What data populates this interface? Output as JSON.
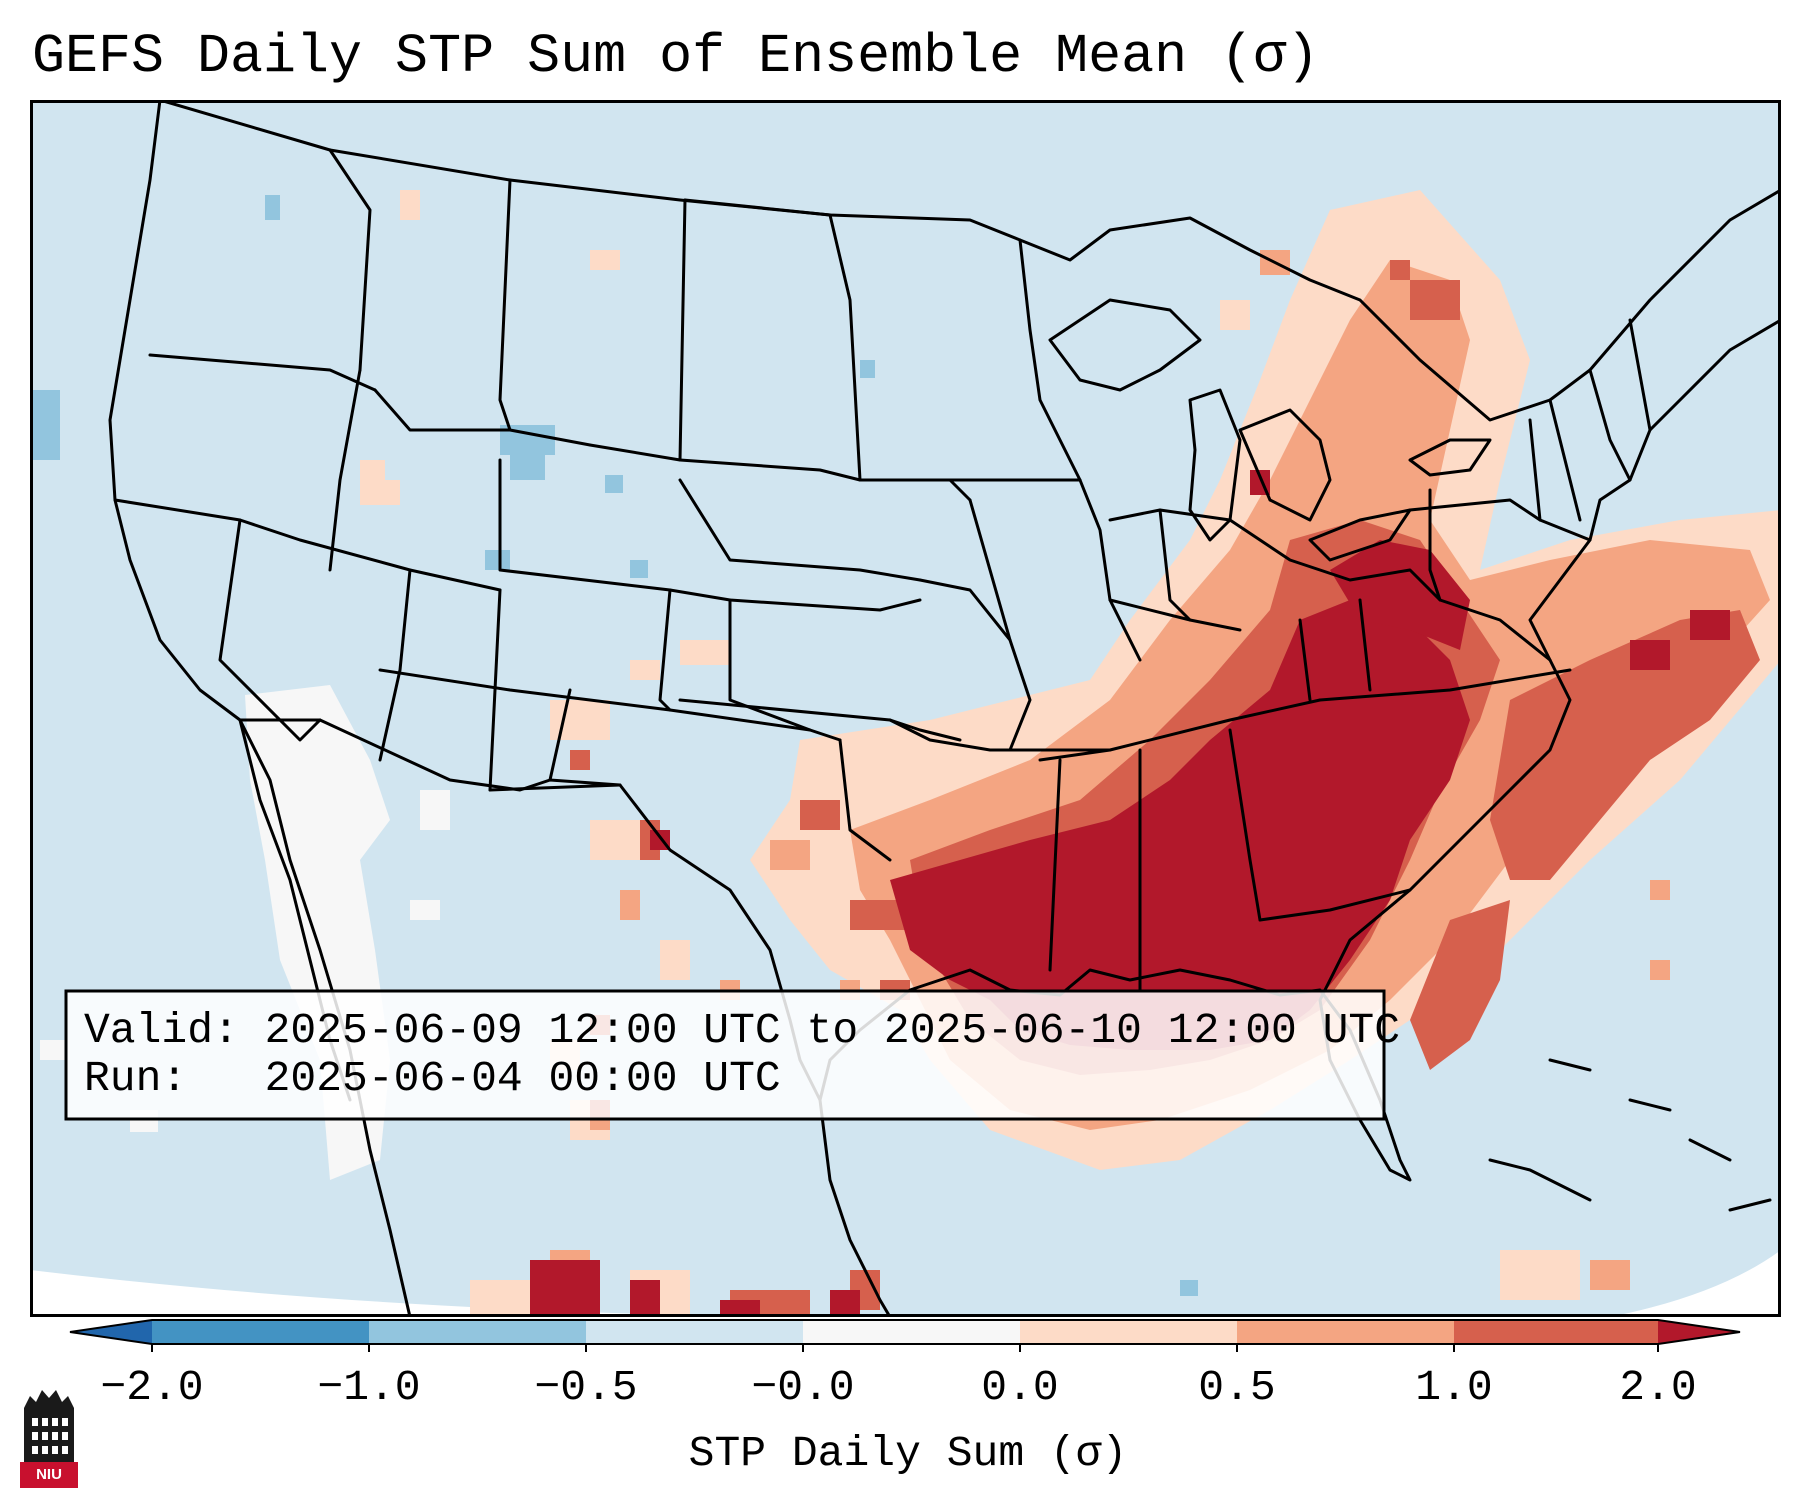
{
  "title": "GEFS Daily STP Sum of Ensemble Mean (σ)",
  "info_box": {
    "valid_line": "Valid: 2025-06-09 12:00 UTC to 2025-06-10 12:00 UTC",
    "run_line": "Run:   2025-06-04 00:00 UTC"
  },
  "colorbar": {
    "label": "STP Daily Sum (σ)",
    "ticks": [
      "−2.0",
      "−1.0",
      "−0.5",
      "−0.0",
      "0.0",
      "0.5",
      "1.0",
      "2.0"
    ],
    "bins": [
      {
        "range": "< -2.0",
        "color": "#2166ac"
      },
      {
        "range": "-2.0 to -1.0",
        "color": "#4393c3"
      },
      {
        "range": "-1.0 to -0.5",
        "color": "#92c5de"
      },
      {
        "range": "-0.5 to -0.0",
        "color": "#d1e5f0"
      },
      {
        "range": "-0.0 to 0.0",
        "color": "#f7f7f7"
      },
      {
        "range": "0.0 to 0.5",
        "color": "#fddbc7"
      },
      {
        "range": "0.5 to 1.0",
        "color": "#f4a582"
      },
      {
        "range": "1.0 to 2.0",
        "color": "#d6604d"
      },
      {
        "range": "> 2.0",
        "color": "#b2182b"
      }
    ]
  },
  "logo": {
    "text": "NIU",
    "color": "#c8102e"
  },
  "map_colors": {
    "background": "#d1e5f0",
    "neutral": "#f7f7f7",
    "light_red": "#fddbc7",
    "salmon": "#f4a582",
    "red": "#d6604d",
    "dark_red": "#b2182b",
    "blue": "#92c5de"
  }
}
